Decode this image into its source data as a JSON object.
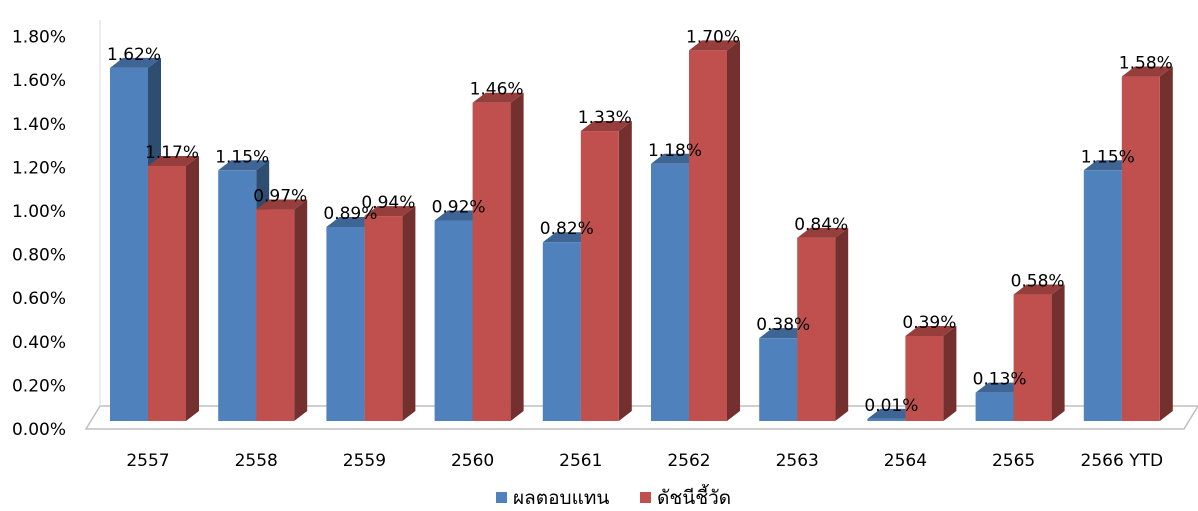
{
  "chart_data": {
    "type": "bar",
    "categories": [
      "2557",
      "2558",
      "2559",
      "2560",
      "2561",
      "2562",
      "2563",
      "2564",
      "2565",
      "2566 YTD"
    ],
    "series": [
      {
        "name": "ผลตอบแทน",
        "color": "#4F81BD",
        "values": [
          1.62,
          1.15,
          0.89,
          0.92,
          0.82,
          1.18,
          0.38,
          0.01,
          0.13,
          1.15
        ],
        "labels": [
          "1.62%",
          "1.15%",
          "0.89%",
          "0.92%",
          "0.82%",
          "1.18%",
          "0.38%",
          "0.01%",
          "0.13%",
          "1.15%"
        ]
      },
      {
        "name": "ดัชนีชี้วัด",
        "color": "#C0504D",
        "values": [
          1.17,
          0.97,
          0.94,
          1.46,
          1.33,
          1.7,
          0.84,
          0.39,
          0.58,
          1.58
        ],
        "labels": [
          "1.17%",
          "0.97%",
          "0.94%",
          "1.46%",
          "1.33%",
          "1.70%",
          "0.84%",
          "0.39%",
          "0.58%",
          "1.58%"
        ]
      }
    ],
    "yticks": [
      "0.00%",
      "0.20%",
      "0.40%",
      "0.60%",
      "0.80%",
      "1.00%",
      "1.20%",
      "1.40%",
      "1.60%",
      "1.80%"
    ],
    "ylim": [
      0,
      1.8
    ],
    "title": "",
    "xlabel": "",
    "ylabel": "",
    "grid": false,
    "legend_position": "bottom",
    "style": "3d-clustered-column"
  }
}
